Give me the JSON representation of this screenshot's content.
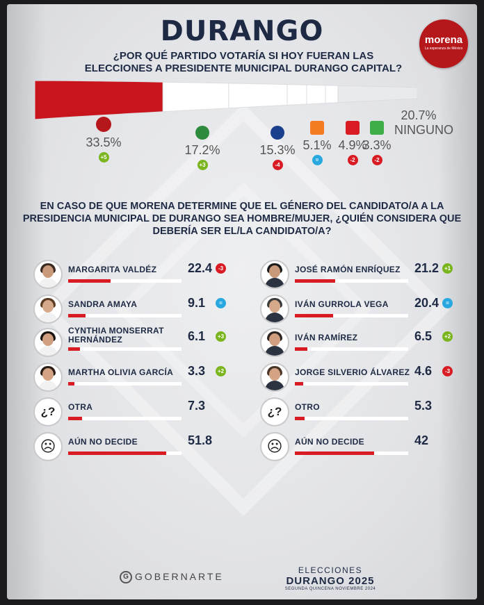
{
  "title": "DURANGO",
  "logo": {
    "name": "morena",
    "tagline": "La esperanza de México"
  },
  "question1": "¿POR QUÉ PARTIDO VOTARÍA SI HOY FUERAN LAS ELECCIONES A PRESIDENTE MUNICIPAL DURANGO CAPITAL?",
  "question2": "EN CASO DE QUE MORENA DETERMINE QUE EL GÉNERO DEL CANDIDATO/A A LA PRESIDENCIA MUNICIPAL DE DURANGO SEA HOMBRE/MUJER, ¿QUIÉN CONSIDERA QUE DEBERÍA SER EL/LA CANDIDATO/A?",
  "colors": {
    "accent": "#d91c24",
    "navy": "#1e2a44",
    "up": "#7ab51d",
    "down": "#d91c24",
    "equal": "#29a8e0"
  },
  "chart_data": [
    {
      "type": "bar",
      "categories": [
        "morena",
        "PRI",
        "PAN",
        "MC",
        "PT",
        "VERDE",
        "NINGUNO"
      ],
      "values": [
        33.5,
        17.2,
        15.3,
        5.1,
        4.9,
        3.3,
        20.7
      ],
      "value_labels": [
        "33.5%",
        "17.2%",
        "15.3%",
        "5.1%",
        "4.9%",
        "3.3%",
        "20.7%"
      ],
      "changes": [
        "+5",
        "+3",
        "-4",
        "=",
        "-2",
        "-2",
        ""
      ],
      "other_label": "NINGUNO",
      "logo_colors": [
        "#b5171b",
        "#2e8b3d",
        "#1a3f8c",
        "#f47b20",
        "#d91c24",
        "#3fae49",
        ""
      ]
    },
    {
      "type": "bar",
      "group": "women",
      "categories": [
        "MARGARITA VALDÉZ",
        "SANDRA AMAYA",
        "CYNTHIA MONSERRAT HERNÁNDEZ",
        "MARTHA OLIVIA GARCÍA",
        "OTRA",
        "AÚN NO DECIDE"
      ],
      "values": [
        22.4,
        9.1,
        6.1,
        3.3,
        7.3,
        51.8
      ],
      "value_labels": [
        "22.4",
        "9.1",
        "6.1",
        "3.3",
        "7.3",
        "51.8"
      ],
      "changes": [
        "-3",
        "=",
        "+3",
        "+2",
        "",
        ""
      ]
    },
    {
      "type": "bar",
      "group": "men",
      "categories": [
        "JOSÉ RAMÓN ENRÍQUEZ",
        "IVÁN GURROLA VEGA",
        "IVÁN RAMÍREZ",
        "JORGE SILVERIO ÁLVAREZ",
        "OTRO",
        "AÚN NO DECIDE"
      ],
      "values": [
        21.2,
        20.4,
        6.5,
        4.6,
        5.3,
        42
      ],
      "value_labels": [
        "21.2",
        "20.4",
        "6.5",
        "4.6",
        "5.3",
        "42"
      ],
      "changes": [
        "+1",
        "=",
        "+2",
        "-3",
        "",
        ""
      ]
    }
  ],
  "footer": {
    "brand": "GOBERNARTE",
    "brand_mark": "G",
    "line1": "ELECCIONES",
    "line2": "DURANGO 2025",
    "line3": "SEGUNDA QUINCENA NOVIEMBRE 2024"
  }
}
